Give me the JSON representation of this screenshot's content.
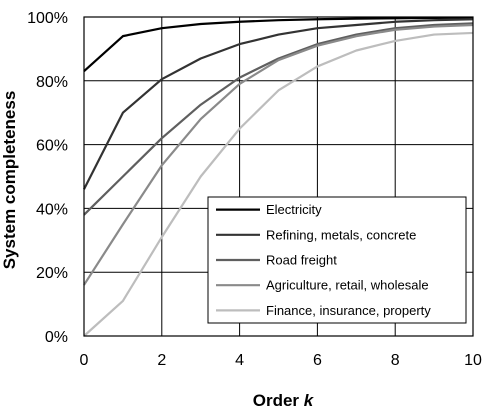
{
  "chart_data": {
    "type": "line",
    "title": "",
    "xlabel_main": "Order ",
    "xlabel_var": "k",
    "ylabel": "System completeness",
    "xlim": [
      0,
      10
    ],
    "ylim": [
      0,
      100
    ],
    "x_ticks": [
      "0",
      "2",
      "4",
      "6",
      "8",
      "10"
    ],
    "y_ticks": [
      "0%",
      "20%",
      "40%",
      "60%",
      "80%",
      "100%"
    ],
    "grid": true,
    "legend_position": "bottom-right",
    "x": [
      0,
      1,
      2,
      3,
      4,
      5,
      6,
      7,
      8,
      9,
      10
    ],
    "series": [
      {
        "name": "Electricity",
        "color": "#000000",
        "values": [
          83,
          94,
          96.5,
          97.8,
          98.5,
          99,
          99.3,
          99.5,
          99.6,
          99.7,
          99.8
        ]
      },
      {
        "name": "Refining, metals, concrete",
        "color": "#333333",
        "values": [
          46,
          70,
          80.5,
          87,
          91.5,
          94.5,
          96.5,
          97.5,
          98.5,
          99,
          99.3
        ]
      },
      {
        "name": "Road freight",
        "color": "#5f5f5f",
        "values": [
          38,
          50,
          62,
          72.5,
          81,
          87,
          91.5,
          94.5,
          96.5,
          97.5,
          98
        ]
      },
      {
        "name": "Agriculture, retail, wholesale",
        "color": "#8a8a8a",
        "values": [
          16,
          35,
          53.5,
          68,
          79,
          86.5,
          91,
          94,
          96,
          97,
          97.5
        ]
      },
      {
        "name": "Finance, insurance, property",
        "color": "#bdbdbd",
        "values": [
          0,
          11,
          31,
          50,
          65,
          77,
          84.5,
          89.5,
          92.5,
          94.5,
          95
        ]
      }
    ]
  }
}
